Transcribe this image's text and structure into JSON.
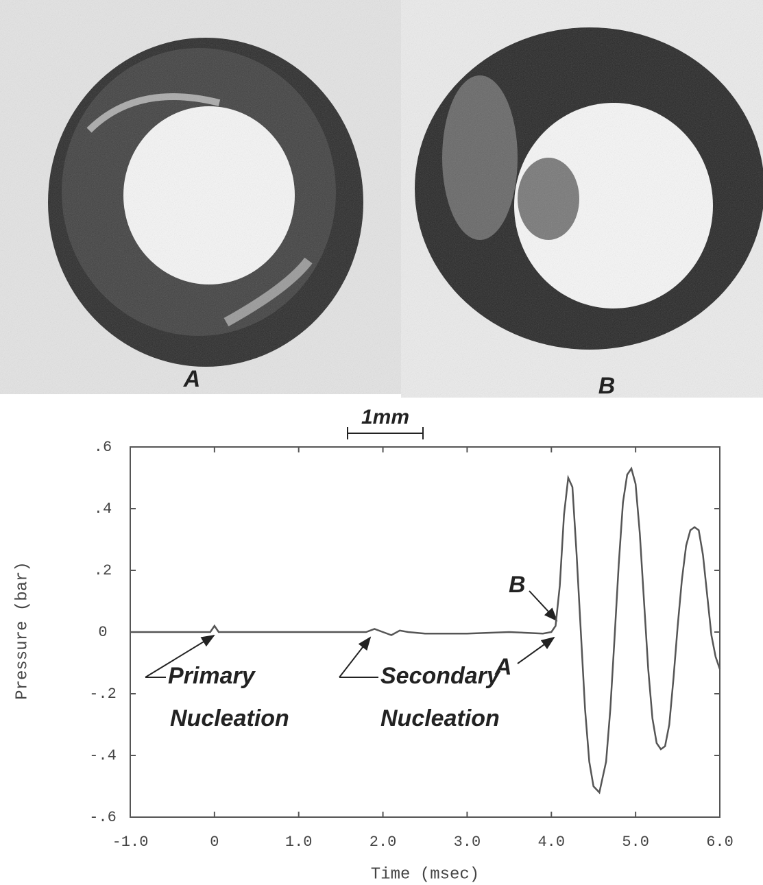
{
  "photo_labels": [
    "A",
    "B"
  ],
  "scale_bar": "1mm",
  "chart_data": {
    "type": "line",
    "x_label": "Time (msec)",
    "y_label": "Pressure (bar)",
    "xlim": [
      -1.0,
      6.0
    ],
    "ylim": [
      -0.6,
      0.6
    ],
    "xticks": [
      {
        "value": -1,
        "label": "-1.0"
      },
      0,
      {
        "value": 1,
        "label": "1.0"
      },
      {
        "value": 2,
        "label": "2.0"
      },
      {
        "value": 3,
        "label": "3.0"
      },
      {
        "value": 4,
        "label": "4.0"
      },
      {
        "value": 5,
        "label": "5.0"
      },
      {
        "value": 6,
        "label": "6.0"
      }
    ],
    "yticks": [
      {
        "value": 0.6,
        "label": ".6"
      },
      {
        "value": 0.4,
        "label": ".4"
      },
      {
        "value": 0.2,
        "label": ".2"
      },
      0,
      {
        "value": -0.2,
        "label": "-.2"
      },
      {
        "value": -0.4,
        "label": "-.4"
      },
      {
        "value": -0.6,
        "label": "-.6"
      }
    ],
    "annotations": [
      "Primary",
      "Nucleation",
      "Secondary",
      "Nucleation",
      "A",
      "B"
    ],
    "series": [
      {
        "color": "#555555",
        "x": [
          -1.0,
          -0.5,
          -0.05,
          0,
          0.05,
          0.5,
          1.0,
          1.5,
          1.8,
          1.9,
          2.0,
          2.1,
          2.2,
          2.3,
          2.5,
          3.0,
          3.5,
          3.9,
          4.0,
          4.05,
          4.1,
          4.15,
          4.2,
          4.25,
          4.3,
          4.35,
          4.4,
          4.45,
          4.5,
          4.57,
          4.65,
          4.7,
          4.75,
          4.8,
          4.85,
          4.9,
          4.95,
          5.0,
          5.05,
          5.1,
          5.15,
          5.2,
          5.25,
          5.3,
          5.35,
          5.4,
          5.45,
          5.5,
          5.55,
          5.6,
          5.65,
          5.7,
          5.75,
          5.8,
          5.85,
          5.9,
          5.95,
          6.0
        ],
        "values": [
          0,
          0,
          0,
          0.02,
          0,
          0,
          0,
          0,
          0,
          0.01,
          0,
          -0.01,
          0.005,
          0,
          -0.005,
          -0.005,
          0,
          -0.005,
          0,
          0.02,
          0.15,
          0.38,
          0.5,
          0.47,
          0.25,
          0,
          -0.25,
          -0.42,
          -0.5,
          -0.52,
          -0.42,
          -0.25,
          -0.02,
          0.22,
          0.42,
          0.51,
          0.53,
          0.48,
          0.32,
          0.1,
          -0.12,
          -0.28,
          -0.36,
          -0.38,
          -0.37,
          -0.3,
          -0.15,
          0.02,
          0.17,
          0.28,
          0.33,
          0.34,
          0.33,
          0.25,
          0.12,
          -0.01,
          -0.08,
          -0.12
        ]
      }
    ]
  }
}
